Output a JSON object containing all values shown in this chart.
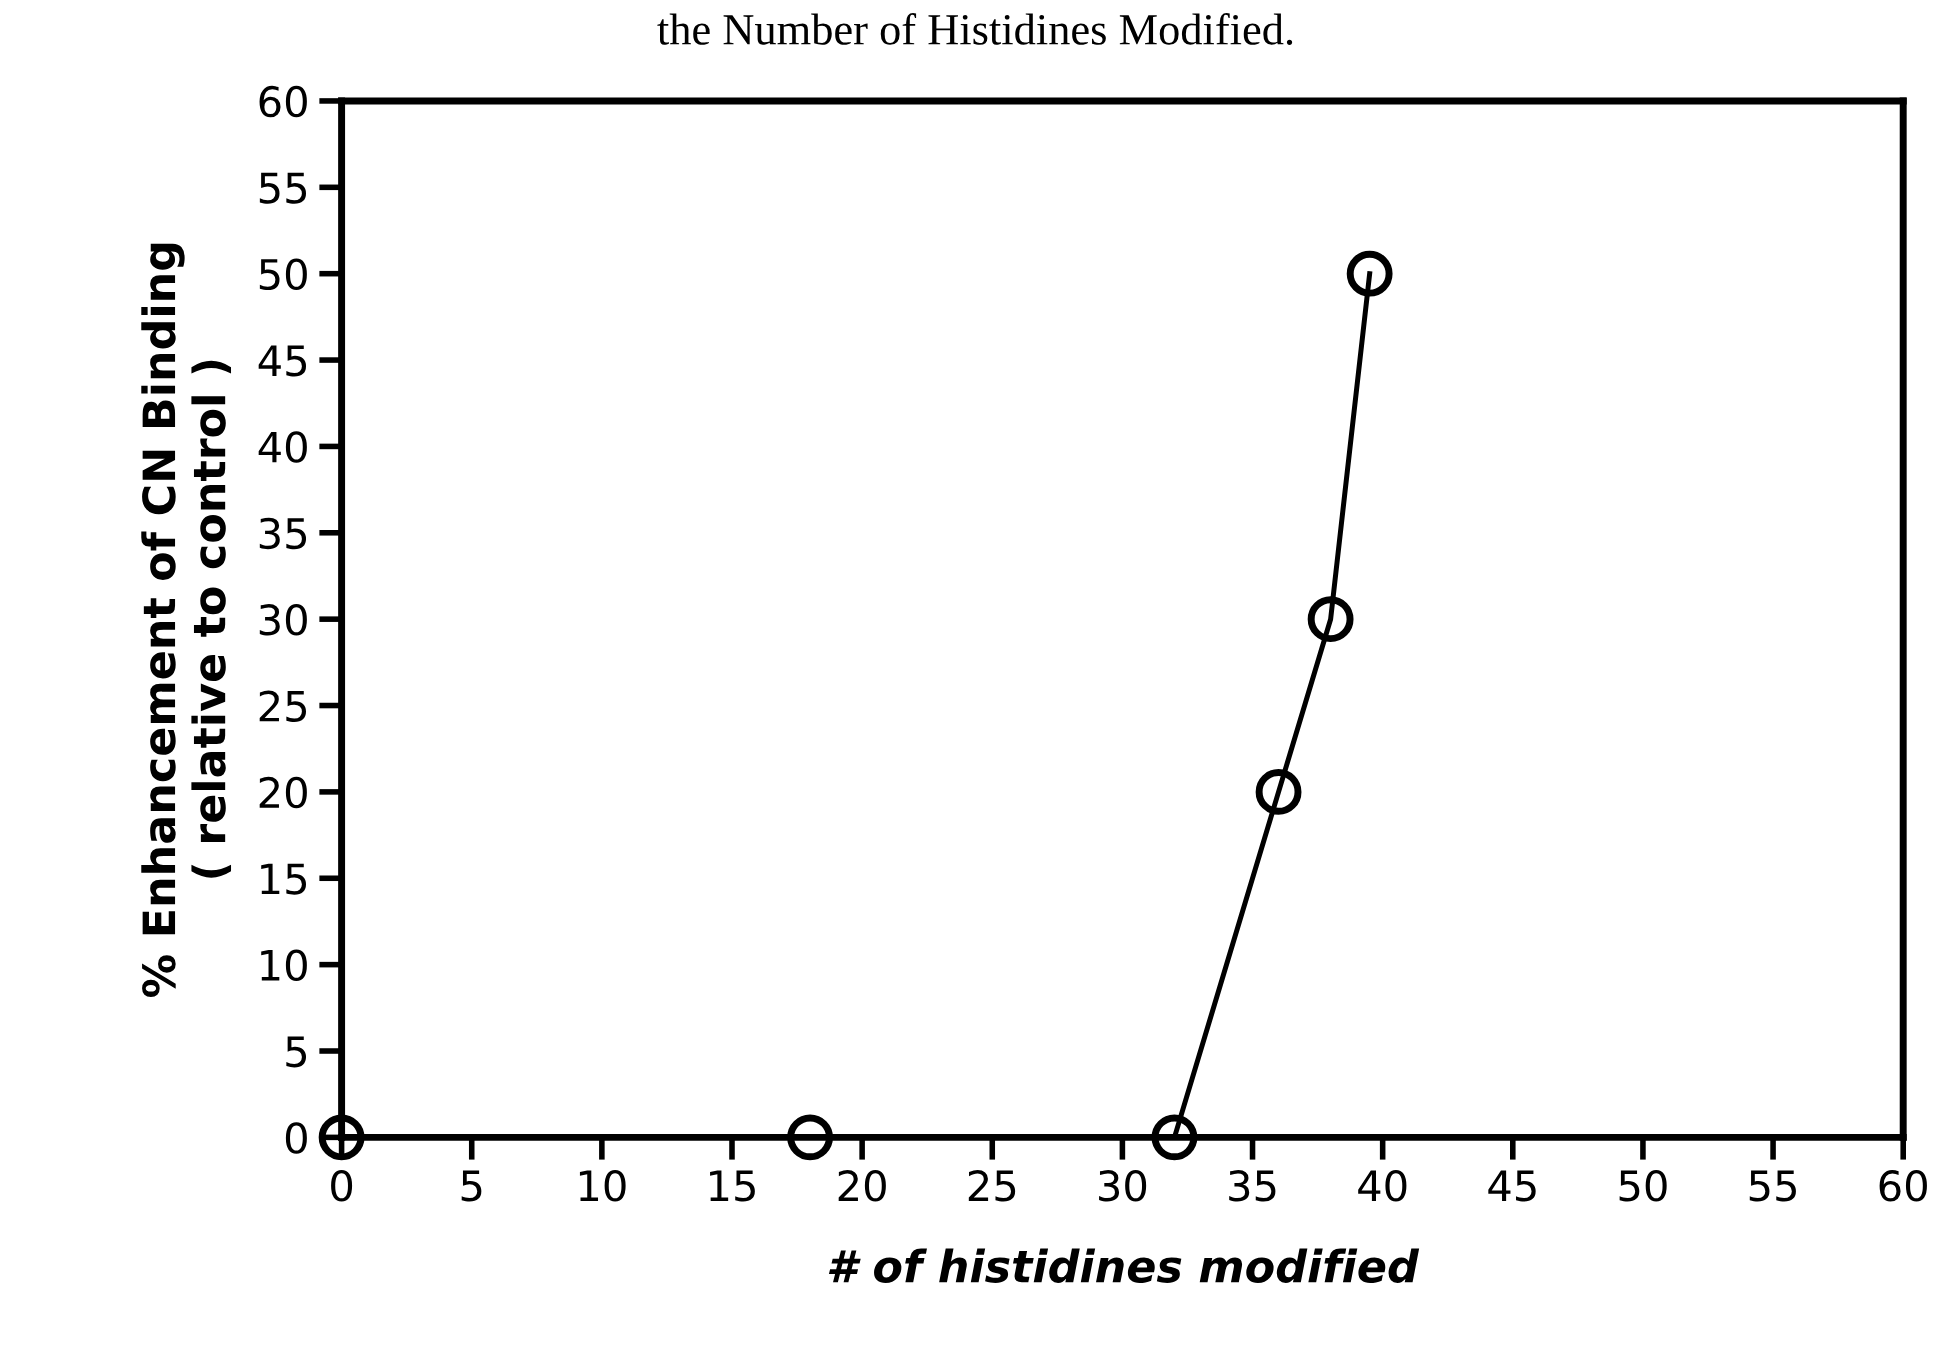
{
  "chart_data": {
    "type": "line",
    "title": "the Number of Histidines Modified.",
    "xlabel": "# of histidines modified",
    "ylabel": "% Enhancement of CN Binding\n( relative to control )",
    "x": [
      0,
      18,
      32,
      36,
      38,
      39.5
    ],
    "series": [
      {
        "color": "#000000",
        "values": [
          0,
          0,
          0,
          20,
          30,
          50
        ]
      }
    ],
    "xlim": [
      0,
      60
    ],
    "ylim": [
      0,
      60
    ],
    "xticks": [
      0,
      5,
      10,
      15,
      20,
      25,
      30,
      35,
      40,
      45,
      50,
      55,
      60
    ],
    "yticks": [
      0,
      5,
      10,
      15,
      20,
      25,
      30,
      35,
      40,
      45,
      50,
      55,
      60
    ],
    "grid": false,
    "legend": false,
    "marker": "circle",
    "line_style": "solid"
  }
}
